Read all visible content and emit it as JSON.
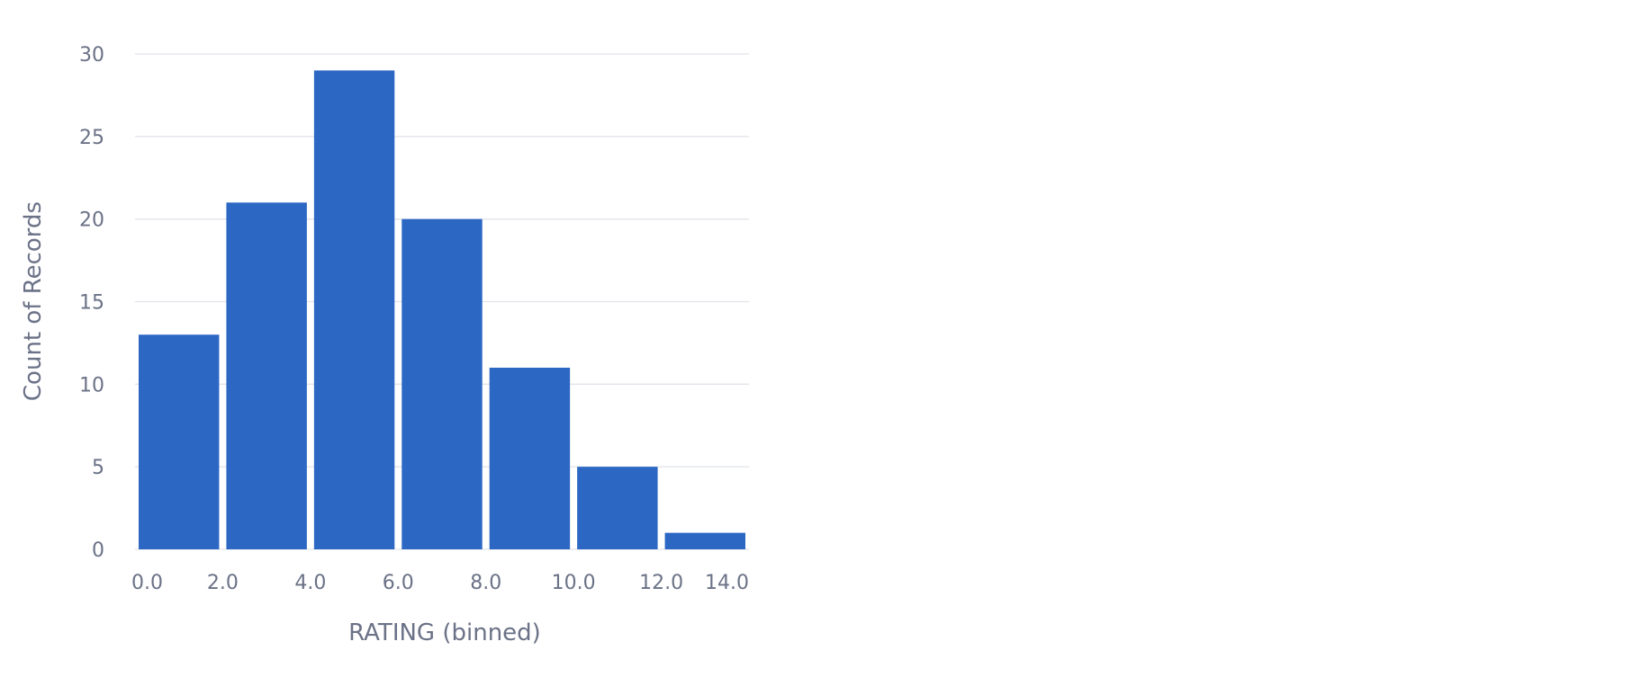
{
  "chart_data": {
    "type": "bar",
    "title": "",
    "xlabel": "RATING (binned)",
    "ylabel": "Count of Records",
    "bins": [
      {
        "start": 0.0,
        "end": 2.0,
        "value": 13
      },
      {
        "start": 2.0,
        "end": 4.0,
        "value": 21
      },
      {
        "start": 4.0,
        "end": 6.0,
        "value": 29
      },
      {
        "start": 6.0,
        "end": 8.0,
        "value": 20
      },
      {
        "start": 8.0,
        "end": 10.0,
        "value": 11
      },
      {
        "start": 10.0,
        "end": 12.0,
        "value": 5
      },
      {
        "start": 12.0,
        "end": 14.0,
        "value": 1
      }
    ],
    "x_ticks": [
      "0.0",
      "2.0",
      "4.0",
      "6.0",
      "8.0",
      "10.0",
      "12.0",
      "14.0"
    ],
    "y_ticks": [
      0,
      5,
      10,
      15,
      20,
      25,
      30
    ],
    "ylim": [
      0,
      30
    ],
    "grid": "horizontal",
    "legend": "none",
    "colors": {
      "bar": "#2c67c4",
      "grid": "#e2e4ea",
      "text": "#6b7287"
    }
  }
}
